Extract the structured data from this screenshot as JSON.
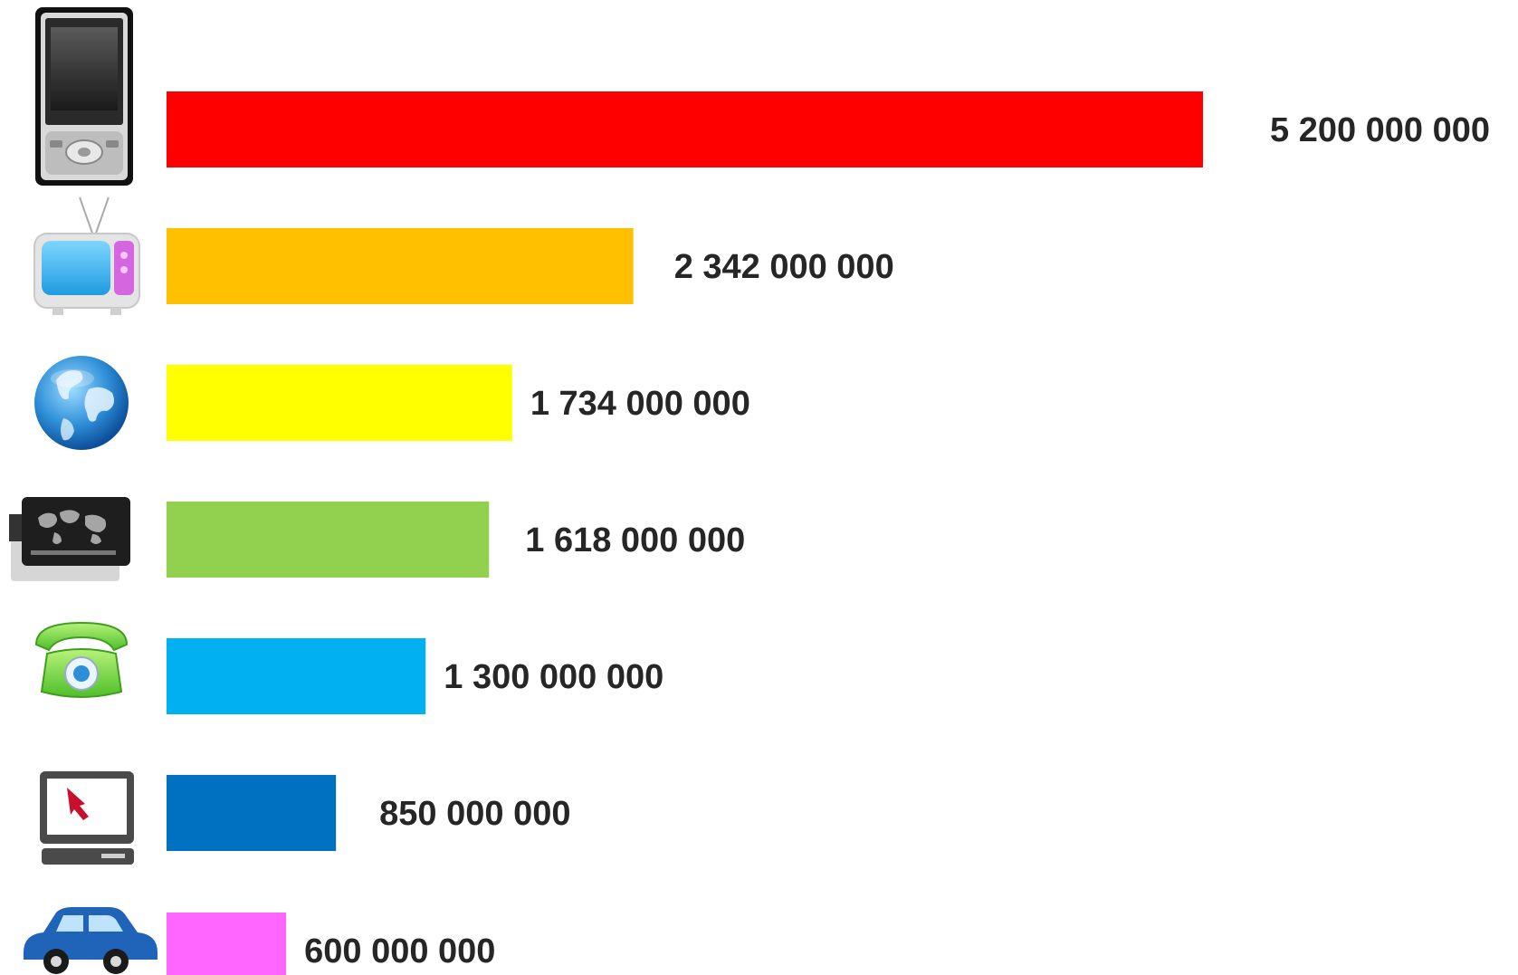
{
  "chart_data": {
    "type": "bar",
    "orientation": "horizontal",
    "title": "",
    "xlabel": "",
    "ylabel": "",
    "grid": false,
    "legend": "none",
    "xlim": [
      0,
      5200000000
    ],
    "categories": [
      {
        "icon": "mobile-phone-icon"
      },
      {
        "icon": "television-icon"
      },
      {
        "icon": "globe-icon"
      },
      {
        "icon": "bank-card-icon"
      },
      {
        "icon": "telephone-icon"
      },
      {
        "icon": "computer-icon"
      },
      {
        "icon": "car-icon"
      }
    ],
    "values": [
      5200000000,
      2342000000,
      1734000000,
      1618000000,
      1300000000,
      850000000,
      600000000
    ],
    "labels": [
      "5 200 000 000",
      "2 342 000 000",
      "1 734 000 000",
      "1 618 000 000",
      "1 300 000 000",
      "850 000 000",
      "600 000 000"
    ],
    "colors": [
      "#FF0000",
      "#FFC000",
      "#FFFF00",
      "#92D050",
      "#00B0F0",
      "#0070C0",
      "#FF66FF"
    ]
  }
}
